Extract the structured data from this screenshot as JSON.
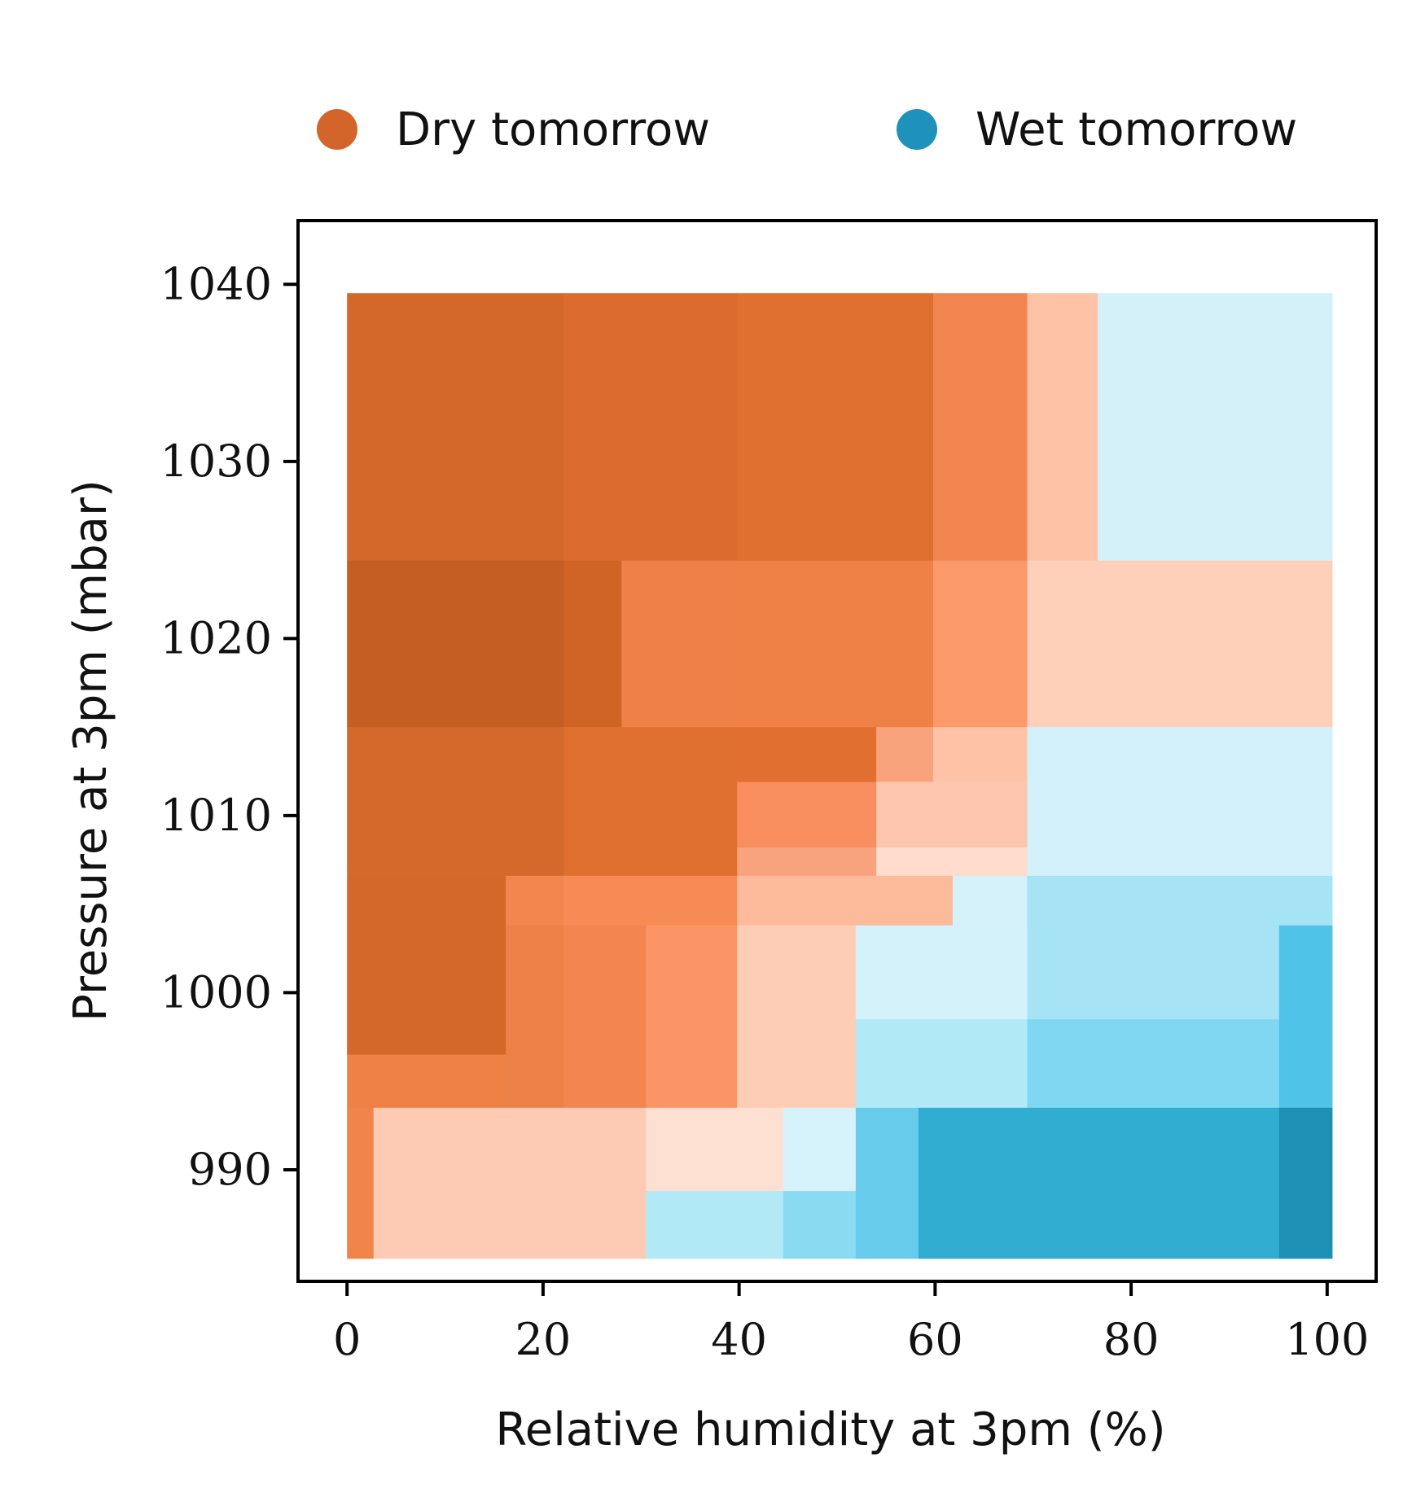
{
  "chart_data": {
    "type": "heatmap",
    "xlabel": "Relative humidity at 3pm (%)",
    "ylabel": "Pressure at 3pm (mbar)",
    "xlim": [
      -5,
      105
    ],
    "ylim": [
      983.7,
      1043.6
    ],
    "x_ticks": [
      "0",
      "20",
      "40",
      "60",
      "80",
      "100"
    ],
    "x_tick_values": [
      0,
      20,
      40,
      60,
      80,
      100
    ],
    "y_ticks": [
      "990",
      "1000",
      "1010",
      "1020",
      "1030",
      "1040"
    ],
    "y_tick_values": [
      990,
      1000,
      1010,
      1020,
      1030,
      1040
    ],
    "grid": false,
    "legend": {
      "placement": "top",
      "items": [
        {
          "label": "Dry tomorrow",
          "color": "#d4652a"
        },
        {
          "label": "Wet tomorrow",
          "color": "#1f92bb"
        }
      ]
    },
    "regions": [
      {
        "x": [
          0,
          22.1
        ],
        "y": [
          1024.4,
          1039.5
        ],
        "color": "#d46828"
      },
      {
        "x": [
          22.1,
          39.8
        ],
        "y": [
          1024.4,
          1039.5
        ],
        "color": "#dc6c2e"
      },
      {
        "x": [
          39.8,
          59.8
        ],
        "y": [
          1024.4,
          1039.5
        ],
        "color": "#e0702f"
      },
      {
        "x": [
          59.8,
          69.4
        ],
        "y": [
          1024.4,
          1039.5
        ],
        "color": "#f2854f"
      },
      {
        "x": [
          69.4,
          76.6
        ],
        "y": [
          1024.4,
          1039.5
        ],
        "color": "#fec3a6"
      },
      {
        "x": [
          76.6,
          100.5
        ],
        "y": [
          1024.4,
          1039.5
        ],
        "color": "#d4f1fa"
      },
      {
        "x": [
          0,
          22.1
        ],
        "y": [
          1015.0,
          1024.4
        ],
        "color": "#c45e22"
      },
      {
        "x": [
          22.1,
          28.0
        ],
        "y": [
          1015.0,
          1024.4
        ],
        "color": "#d06424"
      },
      {
        "x": [
          28.0,
          39.8
        ],
        "y": [
          1015.0,
          1024.4
        ],
        "color": "#ee8048"
      },
      {
        "x": [
          39.8,
          59.8
        ],
        "y": [
          1015.0,
          1024.4
        ],
        "color": "#ef8147"
      },
      {
        "x": [
          59.8,
          69.4
        ],
        "y": [
          1015.0,
          1024.4
        ],
        "color": "#fc9968"
      },
      {
        "x": [
          69.4,
          100.5
        ],
        "y": [
          1015.0,
          1024.4
        ],
        "color": "#fecfb9"
      },
      {
        "x": [
          0,
          22.1
        ],
        "y": [
          1006.6,
          1015.0
        ],
        "color": "#d4692c"
      },
      {
        "x": [
          22.1,
          39.8
        ],
        "y": [
          1006.6,
          1015.0
        ],
        "color": "#e0702f"
      },
      {
        "x": [
          39.8,
          54.0
        ],
        "y": [
          1011.9,
          1015.0
        ],
        "color": "#e06f30"
      },
      {
        "x": [
          54.0,
          59.8
        ],
        "y": [
          1011.9,
          1015.0
        ],
        "color": "#f9a37c"
      },
      {
        "x": [
          59.8,
          69.4
        ],
        "y": [
          1011.9,
          1015.0
        ],
        "color": "#fec3a6"
      },
      {
        "x": [
          39.8,
          54.0
        ],
        "y": [
          1008.2,
          1011.9
        ],
        "color": "#f88d5d"
      },
      {
        "x": [
          54.0,
          69.4
        ],
        "y": [
          1008.2,
          1011.9
        ],
        "color": "#fec6ae"
      },
      {
        "x": [
          39.8,
          54.0
        ],
        "y": [
          1006.6,
          1008.2
        ],
        "color": "#f9a27e"
      },
      {
        "x": [
          54.0,
          69.4
        ],
        "y": [
          1006.6,
          1008.2
        ],
        "color": "#ffdccb"
      },
      {
        "x": [
          69.4,
          100.5
        ],
        "y": [
          1006.6,
          1015.0
        ],
        "color": "#d3f1fa"
      },
      {
        "x": [
          0,
          16.2
        ],
        "y": [
          996.5,
          1006.6
        ],
        "color": "#d46828"
      },
      {
        "x": [
          16.2,
          22.1
        ],
        "y": [
          1003.8,
          1006.6
        ],
        "color": "#f2864e"
      },
      {
        "x": [
          22.1,
          39.8
        ],
        "y": [
          1003.8,
          1006.6
        ],
        "color": "#f78b56"
      },
      {
        "x": [
          39.8,
          61.8
        ],
        "y": [
          1003.8,
          1006.6
        ],
        "color": "#fdbb9c"
      },
      {
        "x": [
          61.8,
          69.4
        ],
        "y": [
          1003.8,
          1006.6
        ],
        "color": "#d5f2fa"
      },
      {
        "x": [
          69.4,
          100.5
        ],
        "y": [
          1003.8,
          1006.6
        ],
        "color": "#a5e3f5"
      },
      {
        "x": [
          16.2,
          22.1
        ],
        "y": [
          993.5,
          1003.8
        ],
        "color": "#ee8148"
      },
      {
        "x": [
          22.1,
          30.5
        ],
        "y": [
          993.5,
          1003.8
        ],
        "color": "#f38650"
      },
      {
        "x": [
          30.5,
          39.8
        ],
        "y": [
          993.5,
          1003.8
        ],
        "color": "#fc9566"
      },
      {
        "x": [
          39.8,
          51.9
        ],
        "y": [
          993.5,
          1003.8
        ],
        "color": "#fecdb6"
      },
      {
        "x": [
          51.9,
          69.4
        ],
        "y": [
          998.5,
          1003.8
        ],
        "color": "#d4f2fa"
      },
      {
        "x": [
          51.9,
          69.4
        ],
        "y": [
          993.5,
          998.5
        ],
        "color": "#b2e9f7"
      },
      {
        "x": [
          69.4,
          95.1
        ],
        "y": [
          998.5,
          1003.8
        ],
        "color": "#a5e3f5"
      },
      {
        "x": [
          69.4,
          95.1
        ],
        "y": [
          993.5,
          998.5
        ],
        "color": "#80d7f1"
      },
      {
        "x": [
          95.1,
          100.5
        ],
        "y": [
          993.5,
          1003.8
        ],
        "color": "#4fc3e8"
      },
      {
        "x": [
          0,
          16.2
        ],
        "y": [
          993.5,
          996.5
        ],
        "color": "#ef8147"
      },
      {
        "x": [
          0,
          2.7
        ],
        "y": [
          985.0,
          993.5
        ],
        "color": "#f0844a"
      },
      {
        "x": [
          2.7,
          30.5
        ],
        "y": [
          985.0,
          993.5
        ],
        "color": "#fdcbb3"
      },
      {
        "x": [
          30.5,
          44.5
        ],
        "y": [
          988.8,
          993.5
        ],
        "color": "#fee0d2"
      },
      {
        "x": [
          30.5,
          44.5
        ],
        "y": [
          985.0,
          988.8
        ],
        "color": "#b2e9f7"
      },
      {
        "x": [
          44.5,
          51.9
        ],
        "y": [
          988.8,
          993.5
        ],
        "color": "#d6f3fb"
      },
      {
        "x": [
          44.5,
          51.9
        ],
        "y": [
          985.0,
          988.8
        ],
        "color": "#8adbf2"
      },
      {
        "x": [
          51.9,
          58.3
        ],
        "y": [
          985.0,
          993.5
        ],
        "color": "#67ccec"
      },
      {
        "x": [
          58.3,
          95.1
        ],
        "y": [
          985.0,
          993.5
        ],
        "color": "#31add2"
      },
      {
        "x": [
          95.1,
          100.5
        ],
        "y": [
          985.0,
          993.5
        ],
        "color": "#1e8fb5"
      }
    ]
  }
}
